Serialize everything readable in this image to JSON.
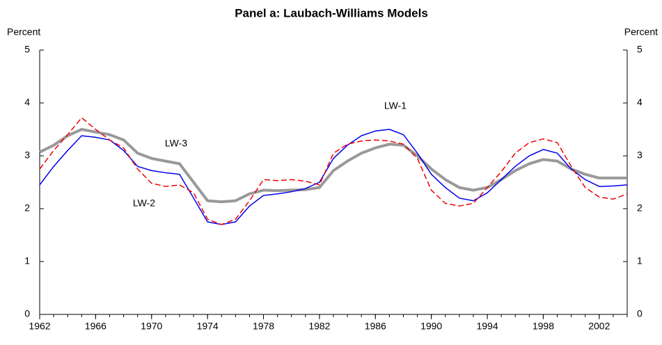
{
  "chart_data": {
    "type": "line",
    "title": "Panel a: Laubach-Williams Models",
    "y_label": "Percent",
    "y2_label": "Percent",
    "x": [
      1962,
      1963,
      1964,
      1965,
      1966,
      1967,
      1968,
      1969,
      1970,
      1971,
      1972,
      1973,
      1974,
      1975,
      1976,
      1977,
      1978,
      1979,
      1980,
      1981,
      1982,
      1983,
      1984,
      1985,
      1986,
      1987,
      1988,
      1989,
      1990,
      1991,
      1992,
      1993,
      1994,
      1995,
      1996,
      1997,
      1998,
      1999,
      2000,
      2001,
      2002,
      2003,
      2004
    ],
    "xlim": [
      1962,
      2004
    ],
    "xticks": [
      1962,
      1966,
      1970,
      1974,
      1978,
      1982,
      1986,
      1990,
      1994,
      1998,
      2002
    ],
    "ylim": [
      0,
      5
    ],
    "yticks": [
      0,
      1,
      2,
      3,
      4,
      5
    ],
    "y2lim": [
      0,
      5
    ],
    "y2ticks": [
      0,
      1,
      2,
      3,
      4,
      5
    ],
    "series": [
      {
        "name": "LW-1",
        "color": "#0000ee",
        "dash": false,
        "width": 1.5,
        "values": [
          2.45,
          2.8,
          3.1,
          3.38,
          3.35,
          3.3,
          3.1,
          2.8,
          2.72,
          2.68,
          2.65,
          2.2,
          1.75,
          1.7,
          1.75,
          2.05,
          2.25,
          2.28,
          2.32,
          2.38,
          2.5,
          2.95,
          3.2,
          3.38,
          3.47,
          3.5,
          3.4,
          3.05,
          2.65,
          2.4,
          2.2,
          2.15,
          2.3,
          2.55,
          2.8,
          3.0,
          3.12,
          3.05,
          2.75,
          2.55,
          2.42,
          2.43,
          2.45
        ]
      },
      {
        "name": "LW-2",
        "color": "#ee0000",
        "dash": true,
        "width": 1.5,
        "values": [
          2.75,
          3.1,
          3.4,
          3.72,
          3.5,
          3.3,
          3.15,
          2.75,
          2.48,
          2.42,
          2.45,
          2.3,
          1.8,
          1.7,
          1.8,
          2.15,
          2.55,
          2.53,
          2.55,
          2.52,
          2.45,
          3.05,
          3.22,
          3.28,
          3.3,
          3.28,
          3.22,
          2.95,
          2.35,
          2.1,
          2.05,
          2.1,
          2.4,
          2.7,
          3.05,
          3.25,
          3.32,
          3.25,
          2.8,
          2.4,
          2.22,
          2.18,
          2.28
        ]
      },
      {
        "name": "LW-3",
        "color": "#999999",
        "dash": false,
        "width": 4,
        "values": [
          3.07,
          3.2,
          3.38,
          3.5,
          3.45,
          3.4,
          3.3,
          3.05,
          2.95,
          2.9,
          2.85,
          2.5,
          2.15,
          2.13,
          2.15,
          2.28,
          2.35,
          2.34,
          2.35,
          2.36,
          2.4,
          2.72,
          2.9,
          3.05,
          3.15,
          3.22,
          3.2,
          3.0,
          2.75,
          2.55,
          2.4,
          2.35,
          2.4,
          2.55,
          2.72,
          2.85,
          2.93,
          2.9,
          2.75,
          2.65,
          2.58,
          2.58,
          2.58
        ]
      }
    ]
  }
}
